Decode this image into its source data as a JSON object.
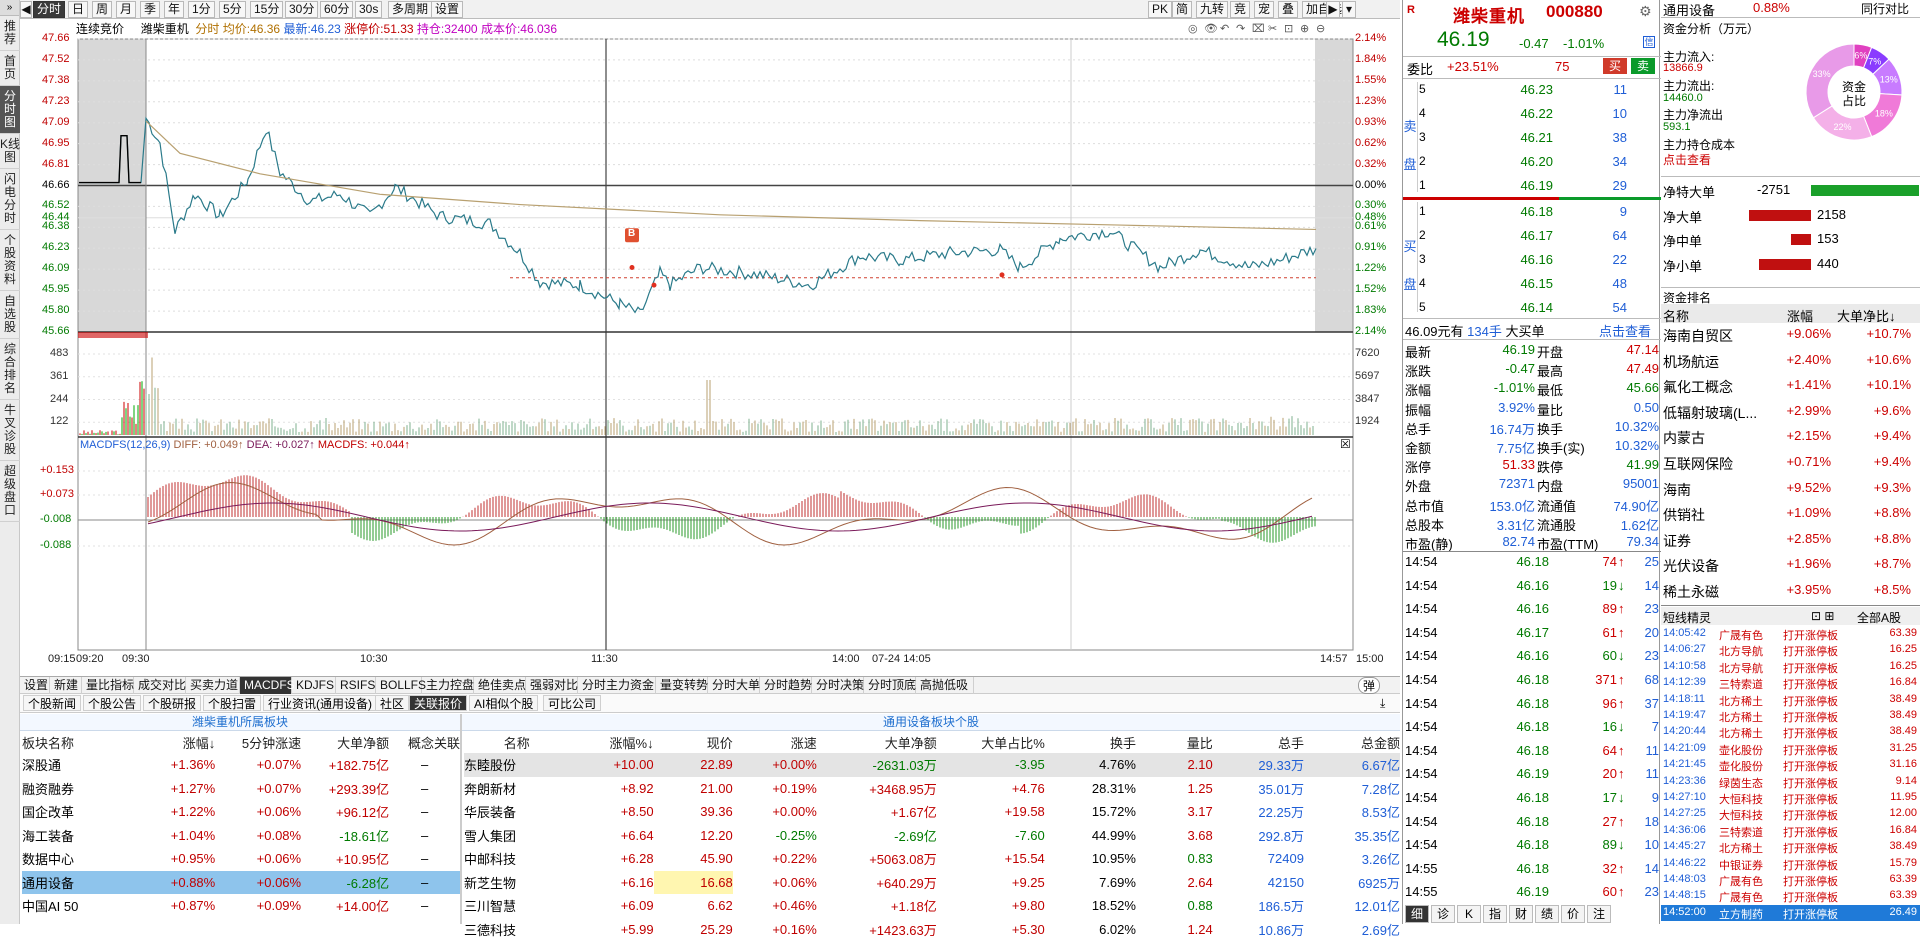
{
  "nav": {
    "items": [
      "推荐",
      "首页",
      "分时图",
      "K线图",
      "闪电分时",
      "个股资料",
      "自选股",
      "综合排名",
      "牛叉诊股",
      "超级盘口"
    ],
    "active_index": 2
  },
  "toolbar": {
    "tabs": [
      "分时",
      "日",
      "周",
      "月",
      "季",
      "年",
      "1分",
      "5分",
      "15分",
      "30分",
      "60分",
      "30s",
      "多周期",
      "设置"
    ],
    "active": "分时",
    "right": [
      "PK",
      "简",
      "九转",
      "竞",
      "宠",
      "叠",
      "加自选"
    ],
    "dropdown": "▾"
  },
  "chart": {
    "mode": "连续竞价",
    "stock": "潍柴重机",
    "labels": {
      "fenshi": "分时",
      "avg_label": "均价:",
      "avg": "46.36",
      "latest_label": "最新:",
      "latest": "46.23",
      "limit_label": "涨停价:",
      "limit": "51.33",
      "hold_label": "持仓:",
      "hold": "32400",
      "cost_label": "成本价:",
      "cost": "46.036"
    },
    "y_prices": [
      "47.66",
      "47.52",
      "47.38",
      "47.23",
      "47.09",
      "46.95",
      "46.81",
      "46.66",
      "46.52",
      "46.38",
      "46.23",
      "46.09",
      "45.95",
      "45.80",
      "45.66"
    ],
    "y_pct": [
      "2.14%",
      "1.84%",
      "1.55%",
      "1.23%",
      "0.93%",
      "0.62%",
      "0.32%",
      "0.00%",
      "0.30%",
      "0.61%",
      "0.91%",
      "1.22%",
      "1.52%",
      "1.83%",
      "2.14%"
    ],
    "left_extra": "46.44",
    "right_extra": "0.48%",
    "vol_left": [
      "483",
      "361",
      "244",
      "122"
    ],
    "vol_right": [
      "7620",
      "5697",
      "3847",
      "1924"
    ],
    "macd_label": "MACDFS(12,26,9)",
    "macd_diff": "DIFF: +0.049↑",
    "macd_dea": "DEA: +0.027↑",
    "macd_macdfs": "MACDFS: +0.044↑",
    "macd_y": [
      "+0.153",
      "+0.073",
      "-0.008",
      "-0.088"
    ],
    "times": [
      "09:15",
      "09:20",
      "09:30",
      "10:30",
      "11:30",
      "14:00",
      "07-24 14:05",
      "14:57",
      "15:00"
    ],
    "marker": "B",
    "close_x": "☒"
  },
  "bottom_tabs": [
    "设置",
    "新建",
    "量比指标",
    "成交对比",
    "买卖力道",
    "MACDFS",
    "KDJFS",
    "RSIFS",
    "BOLLFS",
    "主力控盘",
    "绝佳卖点",
    "强弱对比",
    "分时主力资金",
    "量变转势",
    "分时大单",
    "分时趋势",
    "分时决策",
    "分时顶底",
    "高抛低吸"
  ],
  "bottom_tabs_active": "MACDFS",
  "bottom_right": "弹",
  "sub_tabs": [
    "个股新闻",
    "个股公告",
    "个股研报",
    "个股扫雷",
    "行业资讯(通用设备)",
    "社区",
    "关联报价",
    "AI相似个股",
    "可比公司"
  ],
  "sub_tabs_active": "关联报价",
  "left_panel": {
    "title": "潍柴重机所属板块",
    "headers": [
      "板块名称",
      "涨幅↓",
      "5分钟涨速",
      "大单净额",
      "概念关联"
    ],
    "rows": [
      [
        "深股通",
        "+1.36%",
        "+0.07%",
        "+182.75亿",
        "–"
      ],
      [
        "融资融券",
        "+1.27%",
        "+0.07%",
        "+293.39亿",
        "–"
      ],
      [
        "国企改革",
        "+1.22%",
        "+0.06%",
        "+96.12亿",
        "–"
      ],
      [
        "海工装备",
        "+1.04%",
        "+0.08%",
        "-18.61亿",
        "–"
      ],
      [
        "数据中心",
        "+0.95%",
        "+0.06%",
        "+10.95亿",
        "–"
      ],
      [
        "通用设备",
        "+0.88%",
        "+0.06%",
        "-6.28亿",
        "–"
      ],
      [
        "中国AI 50",
        "+0.87%",
        "+0.09%",
        "+14.00亿",
        "–"
      ]
    ],
    "selected": 5
  },
  "right_panel": {
    "title": "通用设备板块个股",
    "headers": [
      "名称",
      "涨幅%↓",
      "现价",
      "涨速",
      "大单净额",
      "大单占比%",
      "换手",
      "量比",
      "总手",
      "总金额"
    ],
    "rows": [
      [
        "东睦股份",
        "+10.00",
        "22.89",
        "+0.00%",
        "-2631.03万",
        "-3.95",
        "4.76%",
        "2.10",
        "29.33万",
        "6.67亿"
      ],
      [
        "奔朗新材",
        "+8.92",
        "21.00",
        "+0.19%",
        "+3468.95万",
        "+4.76",
        "28.31%",
        "1.25",
        "35.01万",
        "7.28亿"
      ],
      [
        "华辰装备",
        "+8.50",
        "39.36",
        "+0.00%",
        "+1.67亿",
        "+19.58",
        "15.72%",
        "3.17",
        "22.25万",
        "8.53亿"
      ],
      [
        "雪人集团",
        "+6.64",
        "12.20",
        "-0.25%",
        "-2.69亿",
        "-7.60",
        "44.99%",
        "3.68",
        "292.8万",
        "35.35亿"
      ],
      [
        "中邮科技",
        "+6.28",
        "45.90",
        "+0.22%",
        "+5063.08万",
        "+15.54",
        "10.95%",
        "0.83",
        "72409",
        "3.26亿"
      ],
      [
        "新芝生物",
        "+6.16",
        "16.68",
        "+0.06%",
        "+640.29万",
        "+9.25",
        "7.69%",
        "2.64",
        "42150",
        "6925万"
      ],
      [
        "三川智慧",
        "+6.09",
        "6.62",
        "+0.46%",
        "+1.18亿",
        "+9.80",
        "18.52%",
        "0.88",
        "186.5万",
        "12.01亿"
      ],
      [
        "三德科技",
        "+5.99",
        "25.29",
        "+0.16%",
        "+1423.63万",
        "+5.30",
        "6.02%",
        "1.24",
        "10.86万",
        "2.69亿"
      ]
    ],
    "highlight": [
      5,
      2
    ]
  },
  "quote": {
    "name": "潍柴重机",
    "code": "000880",
    "price": "46.19",
    "chg": "-0.47",
    "pct": "-1.01%",
    "weibi_label": "委比",
    "weibi": "+23.51%",
    "weicha": "75",
    "buy_btn": "买",
    "sell_btn": "卖",
    "sell_label": "卖盘",
    "buy_label": "买盘",
    "asks": [
      [
        "5",
        "46.23",
        "11"
      ],
      [
        "4",
        "46.22",
        "10"
      ],
      [
        "3",
        "46.21",
        "38"
      ],
      [
        "2",
        "46.20",
        "34"
      ],
      [
        "1",
        "46.19",
        "29"
      ]
    ],
    "bids": [
      [
        "1",
        "46.18",
        "9"
      ],
      [
        "2",
        "46.17",
        "64"
      ],
      [
        "3",
        "46.16",
        "22"
      ],
      [
        "4",
        "46.15",
        "48"
      ],
      [
        "5",
        "46.14",
        "54"
      ]
    ],
    "bigbuy": {
      "price": "46.09元有",
      "qty": "134手",
      "label": "大买单",
      "link": "点击查看"
    },
    "stats": [
      [
        "最新",
        "46.19",
        "开盘",
        "47.14"
      ],
      [
        "涨跌",
        "-0.47",
        "最高",
        "47.49"
      ],
      [
        "涨幅",
        "-1.01%",
        "最低",
        "45.66"
      ],
      [
        "振幅",
        "3.92%",
        "量比",
        "0.50"
      ],
      [
        "总手",
        "16.74万",
        "换手",
        "10.32%"
      ],
      [
        "金额",
        "7.75亿",
        "换手(实)",
        "10.32%"
      ],
      [
        "涨停",
        "51.33",
        "跌停",
        "41.99"
      ],
      [
        "外盘",
        "72371",
        "内盘",
        "95001"
      ],
      [
        "总市值",
        "153.0亿",
        "流通值",
        "74.90亿"
      ],
      [
        "总股本",
        "3.31亿",
        "流通股",
        "1.62亿"
      ],
      [
        "市盈(静)",
        "82.74",
        "市盈(TTM)",
        "79.34"
      ]
    ],
    "ticks": [
      [
        "14:54",
        "46.18",
        "74",
        "↑",
        "25"
      ],
      [
        "14:54",
        "46.16",
        "19",
        "↓",
        "14"
      ],
      [
        "14:54",
        "46.16",
        "89",
        "↑",
        "23"
      ],
      [
        "14:54",
        "46.17",
        "61",
        "↑",
        "20"
      ],
      [
        "14:54",
        "46.16",
        "60",
        "↓",
        "23"
      ],
      [
        "14:54",
        "46.18",
        "371",
        "↑",
        "68"
      ],
      [
        "14:54",
        "46.18",
        "96",
        "↑",
        "37"
      ],
      [
        "14:54",
        "46.18",
        "16",
        "↓",
        "7"
      ],
      [
        "14:54",
        "46.18",
        "64",
        "↑",
        "11"
      ],
      [
        "14:54",
        "46.19",
        "20",
        "↑",
        "11"
      ],
      [
        "14:54",
        "46.18",
        "17",
        "↓",
        "9"
      ],
      [
        "14:54",
        "46.18",
        "27",
        "↑",
        "18"
      ],
      [
        "14:54",
        "46.18",
        "89",
        "↓",
        "10"
      ],
      [
        "14:55",
        "46.18",
        "32",
        "↑",
        "14"
      ],
      [
        "14:55",
        "46.19",
        "60",
        "↑",
        "23"
      ]
    ],
    "bottom_tabs": [
      "细",
      "诊",
      "K",
      "指",
      "财",
      "绩",
      "价",
      "注"
    ]
  },
  "fund": {
    "sector": "通用设备",
    "sector_pct": "0.88%",
    "sector_btn": "同行对比",
    "title": "资金分析（万元）",
    "inflow_label": "主力流入:",
    "inflow": "13866.9",
    "outflow_label": "主力流出:",
    "outflow": "14460.0",
    "net_label": "主力净流出",
    "net": "593.1",
    "cost_label": "主力持仓成本",
    "cost_link": "点击查看",
    "donut_title": "资金占比",
    "donut": [
      {
        "pct": "6%",
        "color": "#e040c0"
      },
      {
        "pct": "7%",
        "color": "#8a3cff"
      },
      {
        "pct": "13%",
        "color": "#c87bff"
      },
      {
        "pct": "18%",
        "color": "#f07ad8"
      },
      {
        "pct": "22%",
        "color": "#f4b0e8"
      },
      {
        "pct": "33%",
        "color": "#e89ae8"
      }
    ],
    "orders": [
      [
        "净特大单",
        "-2751"
      ],
      [
        "净大单",
        "2158"
      ],
      [
        "净中单",
        "153"
      ],
      [
        "净小单",
        "440"
      ]
    ],
    "rank_title": "资金排名",
    "rank_headers": [
      "名称",
      "涨幅",
      "大单净比↓"
    ],
    "rank": [
      [
        "海南自贸区",
        "+9.06%",
        "+10.7%"
      ],
      [
        "机场航运",
        "+2.40%",
        "+10.6%"
      ],
      [
        "氟化工概念",
        "+1.41%",
        "+10.1%"
      ],
      [
        "低辐射玻璃(L...",
        "+2.99%",
        "+9.6%"
      ],
      [
        "内蒙古",
        "+2.15%",
        "+9.4%"
      ],
      [
        "互联网保险",
        "+0.71%",
        "+9.4%"
      ],
      [
        "海南",
        "+9.52%",
        "+9.3%"
      ],
      [
        "供销社",
        "+1.09%",
        "+8.8%"
      ],
      [
        "证券",
        "+2.85%",
        "+8.8%"
      ],
      [
        "光伏设备",
        "+1.96%",
        "+8.7%"
      ],
      [
        "稀土永磁",
        "+3.95%",
        "+8.5%"
      ]
    ],
    "sprite_title": "短线精灵",
    "sprite_right": "全部A股",
    "sprites": [
      [
        "14:05:42",
        "广晟有色",
        "打开涨停板",
        "63.39"
      ],
      [
        "14:06:27",
        "北方导航",
        "打开涨停板",
        "16.25"
      ],
      [
        "14:10:58",
        "北方导航",
        "打开涨停板",
        "16.25"
      ],
      [
        "14:12:39",
        "三特索道",
        "打开涨停板",
        "16.84"
      ],
      [
        "14:18:11",
        "北方稀土",
        "打开涨停板",
        "38.49"
      ],
      [
        "14:19:47",
        "北方稀土",
        "打开涨停板",
        "38.49"
      ],
      [
        "14:20:44",
        "北方稀土",
        "打开涨停板",
        "38.49"
      ],
      [
        "14:21:09",
        "壶化股份",
        "打开涨停板",
        "31.25"
      ],
      [
        "14:21:45",
        "壶化股份",
        "打开涨停板",
        "31.16"
      ],
      [
        "14:23:36",
        "绿茵生态",
        "打开涨停板",
        "9.14"
      ],
      [
        "14:27:10",
        "大恒科技",
        "打开涨停板",
        "11.95"
      ],
      [
        "14:27:25",
        "大恒科技",
        "打开涨停板",
        "12.00"
      ],
      [
        "14:36:06",
        "三特索道",
        "打开涨停板",
        "16.84"
      ],
      [
        "14:45:27",
        "北方稀土",
        "打开涨停板",
        "38.49"
      ],
      [
        "14:46:22",
        "中银证券",
        "打开涨停板",
        "15.79"
      ],
      [
        "14:48:03",
        "广晟有色",
        "打开涨停板",
        "63.39"
      ],
      [
        "14:48:15",
        "广晟有色",
        "打开涨停板",
        "63.39"
      ],
      [
        "14:52:00",
        "立方制药",
        "打开涨停板",
        "26.49"
      ]
    ]
  }
}
